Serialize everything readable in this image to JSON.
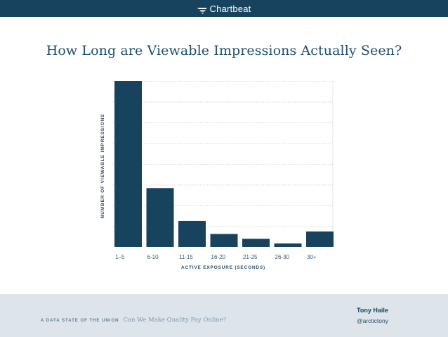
{
  "header": {
    "brand_name": "Chartbeat",
    "brand_icon": "chartbeat-logo-icon",
    "background_color": "#17435f"
  },
  "slide": {
    "title": "How Long are Viewable Impressions Actually Seen?"
  },
  "chart_data": {
    "type": "bar",
    "title": "How Long are Viewable Impressions Actually Seen?",
    "xlabel": "ACTIVE EXPOSURE (SECONDS)",
    "ylabel": "NUMBER OF VIEWABLE IMPRESSIONS",
    "categories": [
      "1–5",
      "6-10",
      "11-15",
      "16-20",
      "21-25",
      "26-30",
      "30+"
    ],
    "values": [
      8.6,
      3.05,
      1.35,
      0.67,
      0.42,
      0.18,
      0.8
    ],
    "ylim": [
      0,
      8.6
    ],
    "grid": true,
    "grid_style": "dotted",
    "y_tick_labels_shown": false,
    "bar_color": "#17435f"
  },
  "footer": {
    "series_label": "A DATA STATE OF THE UNION",
    "deck_title": "Can We Make Quality Pay Online?",
    "author": "Tony Haile",
    "handle": "@arctictony",
    "background_color": "#dde5eb"
  }
}
